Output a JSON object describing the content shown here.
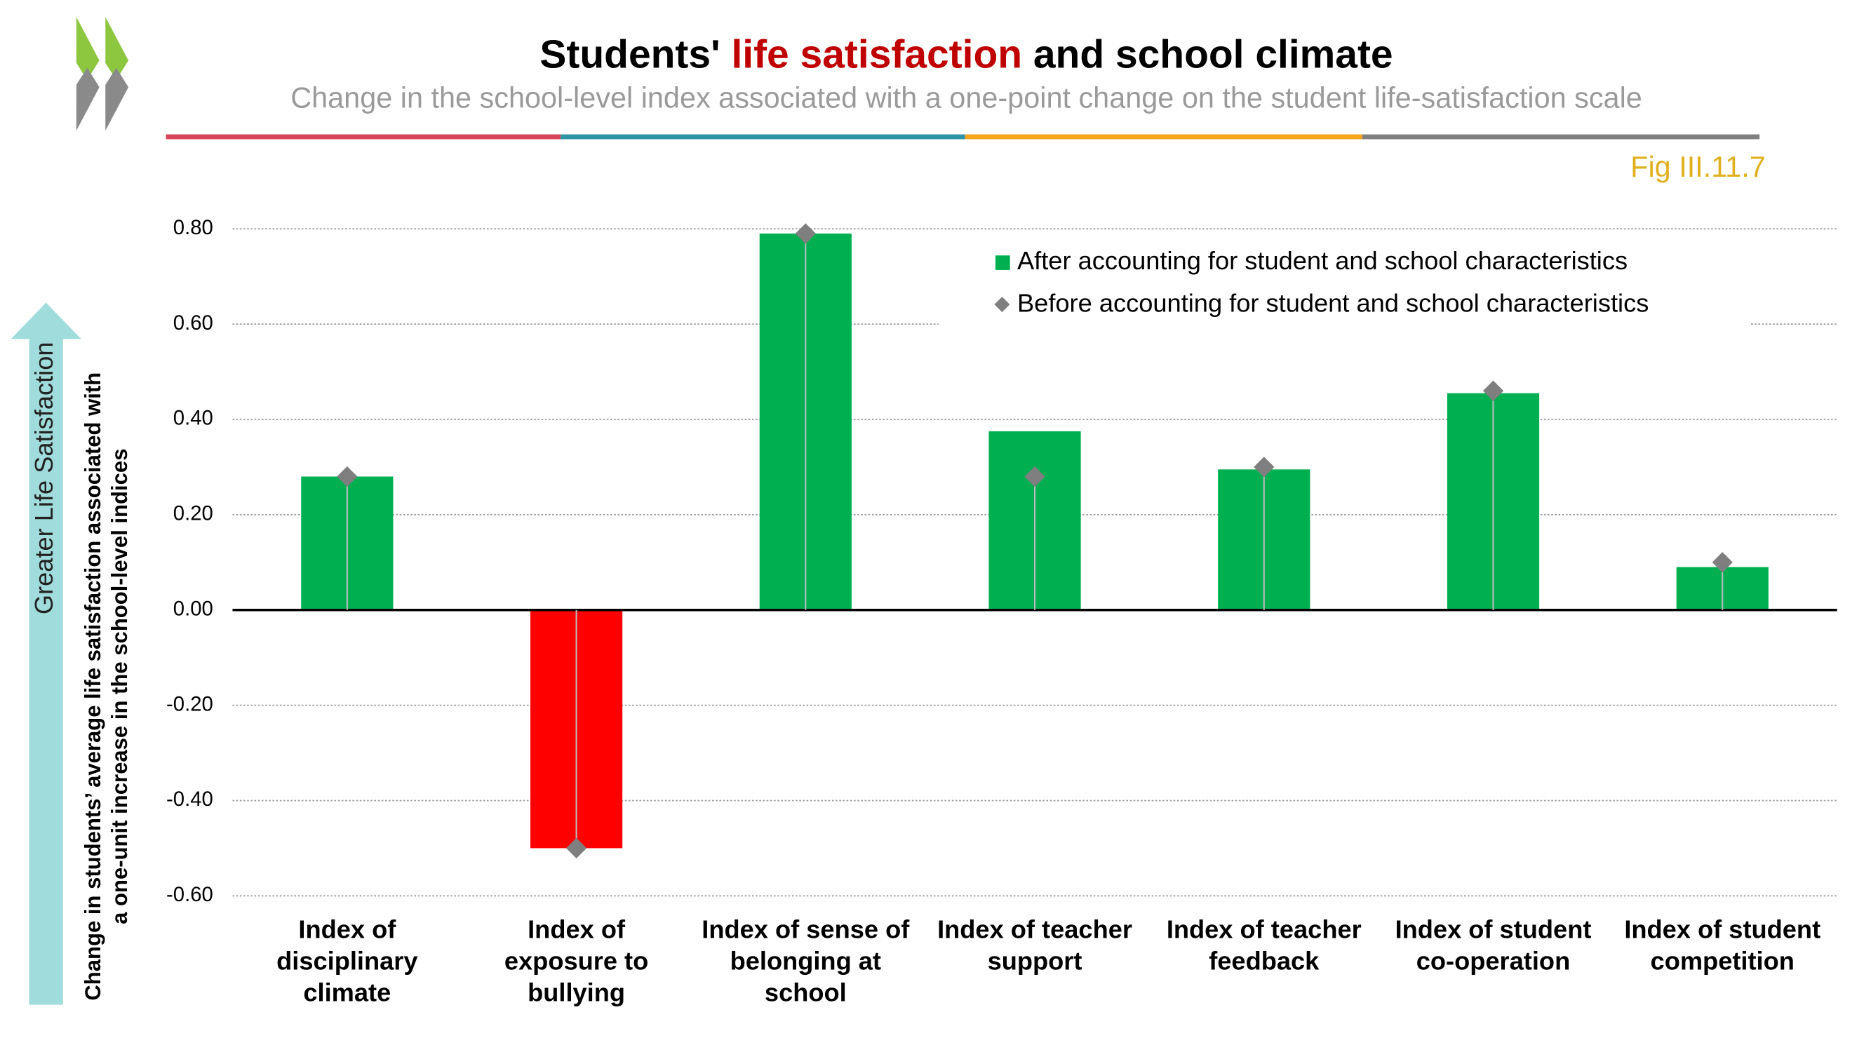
{
  "chart_data": {
    "type": "bar",
    "title": [
      "Students' ",
      "life satisfaction",
      " and school climate"
    ],
    "subtitle": "Change in the school-level index associated with a one-point change on the student life-satisfaction scale",
    "figure_label": "Fig III.11.7",
    "ylabel": [
      "Change in students’ average life satisfaction associated with",
      "a one-unit increase in the school-level indices"
    ],
    "arrow_label": "Greater Life Satisfaction",
    "categories": [
      "Index of\ndisciplinary\nclimate",
      "Index of\nexposure to\nbullying",
      "Index of sense of\nbelonging at\nschool",
      "Index of teacher\nsupport",
      "Index of teacher\nfeedback",
      "Index of student\nco-operation",
      "Index of student\ncompetition"
    ],
    "series": [
      {
        "name": "After accounting for student and school characteristics",
        "color": "#00b050",
        "negative_color": "#ff0000",
        "values": [
          0.28,
          -0.5,
          0.79,
          0.375,
          0.295,
          0.455,
          0.09
        ]
      },
      {
        "name": "Before accounting for student and school characteristics",
        "color": "#7f7f7f",
        "values": [
          0.28,
          -0.5,
          0.79,
          0.28,
          0.3,
          0.46,
          0.1
        ]
      }
    ],
    "ylim": [
      -0.6,
      0.8
    ],
    "yticks": [
      {
        "value": -0.6,
        "label": "-0.60"
      },
      {
        "value": -0.4,
        "label": "-0.40"
      },
      {
        "value": -0.2,
        "label": "-0.20"
      },
      {
        "value": 0,
        "label": "0.00"
      },
      {
        "value": 0.2,
        "label": "0.20"
      },
      {
        "value": 0.4,
        "label": "0.40"
      },
      {
        "value": 0.6,
        "label": "0.60"
      },
      {
        "value": 0.8,
        "label": "0.80"
      }
    ],
    "grid": true,
    "legend": "top-right"
  }
}
